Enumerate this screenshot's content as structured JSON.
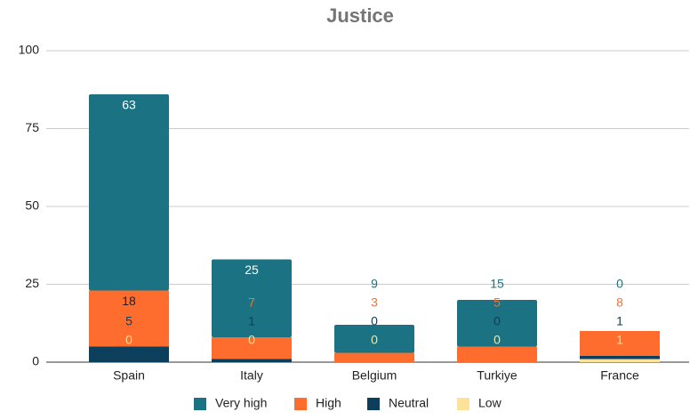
{
  "chart_data": {
    "type": "stacked_bar",
    "title": "Justice",
    "categories": [
      "Spain",
      "Italy",
      "Belgium",
      "Turkiye",
      "France"
    ],
    "series": [
      {
        "name": "Low",
        "color": "#ffe29a",
        "values": [
          0,
          0,
          0,
          0,
          1
        ]
      },
      {
        "name": "Neutral",
        "color": "#0b3f5c",
        "values": [
          5,
          1,
          0,
          0,
          1
        ]
      },
      {
        "name": "High",
        "color": "#ff6d2e",
        "values": [
          18,
          7,
          3,
          5,
          8
        ]
      },
      {
        "name": "Very high",
        "color": "#1b7282",
        "values": [
          63,
          25,
          9,
          15,
          0
        ]
      }
    ],
    "legend_order": [
      "Very high",
      "High",
      "Neutral",
      "Low"
    ],
    "ylim": [
      0,
      100
    ],
    "yticks": [
      0,
      25,
      50,
      75,
      100
    ],
    "grid": true
  }
}
